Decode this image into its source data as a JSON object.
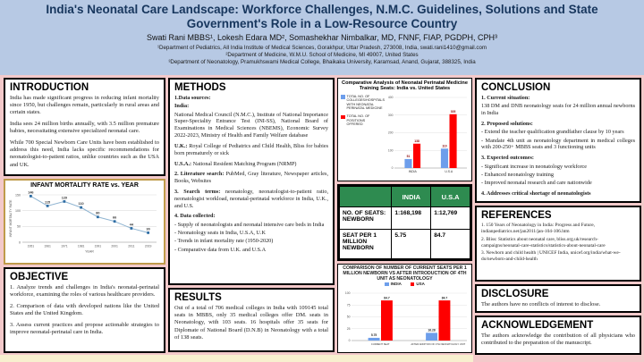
{
  "colors": {
    "header_bg": "#b7c9e4",
    "title_color": "#17365d",
    "page_bg": "#f3c9ca",
    "chart_frame": "#bf9b4a",
    "table_header_bg": "#2e8b50",
    "india_blue": "#6d9eeb",
    "usa_red": "#fe0000"
  },
  "header": {
    "title": "India's Neonatal Care Landscape: Workforce Challenges, N.M.C. Guidelines, Solutions and State Government's Role in a Low-Resource Country",
    "authors": "Swati Rani MBBS¹, Lokesh Edara MD², Somashekhar Nimbalkar, MD, FNNF, FIAP, PGDPH, CPH³",
    "affiliations": [
      "¹Department of Pediatrics, All India Institute of Medical Sciences, Gorakhpur, Uttar Pradesh, 273008, India, swati.rani1410@gmail.com",
      "²Department of Medicine, W.M.U. School of Medicine, MI 49007, United States",
      "³Department of Neonatology, Pramukhswami Medical College, Bhaikaka University, Karamsad, Anand, Gujarat, 388325, India"
    ]
  },
  "introduction": {
    "heading": "INTRODUCTION",
    "paragraphs": [
      "India has made significant progress in reducing infant mortality since 1950, but challenges remain, particularly in rural areas and certain states.",
      "India sees 24 million births annually, with 3.5 million premature babies, necessitating extensive specialized neonatal care.",
      "While 700 Special Newborn Care Units have been established to address this need, India lacks specific recommendations for neonatologist-to-patient ratios, unlike countries such as the USA and UK."
    ]
  },
  "objective": {
    "heading": "OBJECTIVE",
    "paragraphs": [
      "1. Analyze trends and challenges in India's neonatal-perinatal workforce, examining the roles of various healthcare providers.",
      "2. Comparison of data with developed nations like the United States and the United Kingdom.",
      "3. Assess current practices and propose actionable strategies to improve neonatal-perinatal care in India."
    ]
  },
  "methods": {
    "heading": "METHODS",
    "blocks": [
      {
        "bold": "1.Data sources:"
      },
      {
        "bold": "India:"
      },
      {
        "text": "National Medical Council (N.M.C.), Institute of National Importance Super-Speciality Entrance Test (INI-SS), National Board of Examinations in Medical Sciences (NBEMS), Economic Survey 2022-2023, Ministry of Health and Family Welfare database"
      },
      {
        "bold": "U.K.:",
        "text": " Royal College of Pediatrics and Child Health, Bliss for babies born prematurely or sick",
        "gap": true
      },
      {
        "bold": "U.S.A.:",
        "text": " National Resident Matching Program (NRMP)",
        "gap": true
      },
      {
        "bold": "2. Literature search:",
        "text": " PubMed, Gray literature, Newspaper articles, Books, Websites",
        "gap": true
      },
      {
        "bold": "3. Search terms:",
        "text": " neonatology, neonatologist-to-patient ratio, neonatologist workload, neonatal-perinatal workforce in India, U.K., and U.S.",
        "gap": true
      },
      {
        "bold": "4. Data collected:",
        "gap": true
      },
      {
        "text": "- Supply of neonatologists and neonatal intensive care beds in India"
      },
      {
        "text": "- Neonatology seats in India, U.S.A, U.K"
      },
      {
        "text": "- Trends in infant mortality rate (1950-2020)"
      },
      {
        "text": "- Comparative data from U.K. and U.S.A"
      }
    ]
  },
  "results": {
    "heading": "RESULTS",
    "paragraphs": [
      "Out of a total of 706 medical colleges in India with 109145 total seats in MBBS, only 35 medical colleges offer DM. seats in Neonatology, with 103 seats. 16 hospitals offer 35 seats for Diplomate of National Board (D.N.B) in Neonatology with a total of 138 seats."
    ]
  },
  "conclusion": {
    "heading": "CONCLUSION",
    "blocks": [
      {
        "bold": "1. Current situation:"
      },
      {
        "text": "138 DM and DNB neonatology seats for 24 million annual newborns in India"
      },
      {
        "bold": "2. Proposed solutions:",
        "gap": true
      },
      {
        "text": "- Extend the teacher qualification grandfather clause by 10 years"
      },
      {
        "text": "- Mandate 4th unit as neonatology department in medical colleges with 200-250+ MBBS seats and 3 functioning units"
      },
      {
        "bold": "3. Expected outcomes:",
        "gap": true
      },
      {
        "text": "- Significant increase in neonatology workforce"
      },
      {
        "text": "- Enhanced neonatology training"
      },
      {
        "text": "- Improved neonatal research and care nationwide"
      },
      {
        "bold": "4. Addresses critical shortage of neonatologists",
        "gap": true
      }
    ]
  },
  "references": {
    "heading": "REFERENCES",
    "items": [
      "1. 150 Years of Neonatology in India: Progress and Future, indianpediatrics.net/jan2011/jan-104-106.htm",
      "2. Bliss: Statistics about neonatal care, bliss.org.uk/research-campaigns/neonatal-care-statistics/statistics-about-neonatal-care",
      "3. Newborn and child health | UNICEF India, unicef.org/india/what-we-do/newborn-and-child-health"
    ]
  },
  "disclosure": {
    "heading": "DISCLOSURE",
    "text": "The authors have no conflicts of interest to disclose."
  },
  "acknowledgement": {
    "heading": "ACKNOWLEDGEMENT",
    "text": "The authors acknowledge the contribution of all physicians who contributed to the preparation of the manuscript."
  },
  "comparison_table": {
    "columns": [
      "",
      "INDIA",
      "U.S.A"
    ],
    "rows": [
      {
        "label": "NO. OF SEATS: NEWBORN",
        "india": "1:168,198",
        "usa": "1:12,769"
      },
      {
        "label": "SEAT PER 1 MILLION NEWBORN",
        "india": "5.75",
        "usa": "84.7"
      }
    ]
  },
  "chart_data": [
    {
      "type": "line",
      "title": "INFANT MORTALITY RATE vs. YEAR",
      "x": [
        1951,
        1961,
        1971,
        1981,
        1991,
        2001,
        2011,
        2019
      ],
      "values": [
        146,
        115,
        129,
        110,
        80,
        66,
        44,
        30
      ],
      "xlabel": "YEAR",
      "ylabel": "INFANT MORTALITY RATE",
      "ylim": [
        0,
        150
      ],
      "yticks": [
        0,
        50,
        100,
        150
      ],
      "line_color": "#8fb4d1",
      "grid": true
    },
    {
      "type": "bar",
      "title": "Comparative Analysis of Neonatal Perinatal Medicine Training Seats: India vs. United States",
      "categories": [
        "INDIA",
        "U.S.A"
      ],
      "series": [
        {
          "name": "TOTAL NO. OF COLLEGES/HOSPITALS WITH NEONATAL PERINATAL MEDICINE",
          "color": "#6d9eeb",
          "values": [
            51,
            110
          ]
        },
        {
          "name": "TOTAL NO. OF POSITIONS OFFERED",
          "color": "#fe0000",
          "values": [
            138,
            305
          ]
        }
      ],
      "ylim": [
        0,
        400
      ],
      "yticks": [
        0,
        100,
        200,
        300,
        400
      ],
      "legend_position": "left",
      "label_color": "#8b0000",
      "grid": true
    },
    {
      "type": "bar",
      "title": "COMPARISON OF NUMBER OF CURRENT SEATS PER 1 MILLION NEWBORN VS AFTER INTRODUCTION OF 4TH UNIT AS NEONATOLOGY",
      "categories": [
        "CURRENT SEAT",
        "AFTER ADDITION OF 4TH NEONATOLOGY UNIT"
      ],
      "series": [
        {
          "name": "INDIA",
          "color": "#6d9eeb",
          "values": [
            5.75,
            16.28
          ]
        },
        {
          "name": "USA",
          "color": "#fe0000",
          "values": [
            84.7,
            84.7
          ]
        }
      ],
      "ylim": [
        0,
        100
      ],
      "yticks": [
        0,
        25,
        50,
        75,
        100
      ],
      "legend_position": "top",
      "label_color": "#222222",
      "grid": true
    }
  ]
}
